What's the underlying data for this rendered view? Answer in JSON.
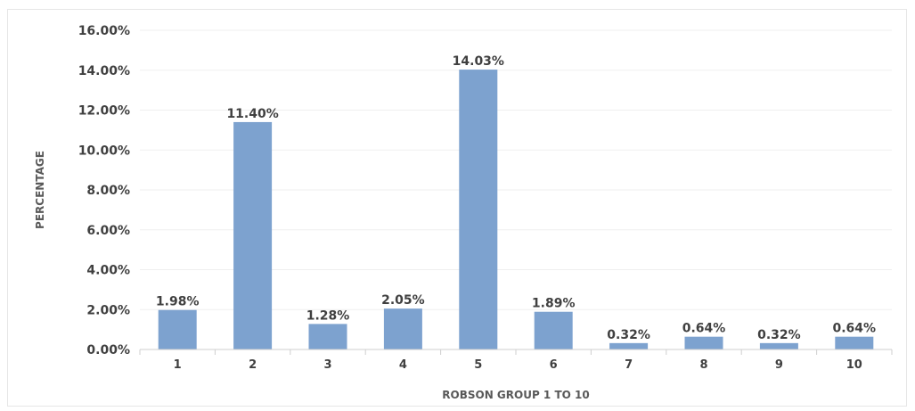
{
  "chart_data": {
    "type": "bar",
    "title": "",
    "xlabel": "ROBSON GROUP 1 TO 10",
    "ylabel": "PERCENTAGE",
    "categories": [
      "1",
      "2",
      "3",
      "4",
      "5",
      "6",
      "7",
      "8",
      "9",
      "10"
    ],
    "values": [
      1.98,
      11.4,
      1.28,
      2.05,
      14.03,
      1.89,
      0.32,
      0.64,
      0.32,
      0.64
    ],
    "data_labels": [
      "1.98%",
      "11.40%",
      "1.28%",
      "2.05%",
      "14.03%",
      "1.89%",
      "0.32%",
      "0.64%",
      "0.32%",
      "0.64%"
    ],
    "ylim": [
      0,
      16
    ],
    "yticks": [
      0,
      2,
      4,
      6,
      8,
      10,
      12,
      14,
      16
    ],
    "ytick_labels": [
      "0.00%",
      "2.00%",
      "4.00%",
      "6.00%",
      "8.00%",
      "10.00%",
      "12.00%",
      "14.00%",
      "16.00%"
    ],
    "grid": true,
    "legend": "none",
    "bar_color": "#7da2cf"
  }
}
